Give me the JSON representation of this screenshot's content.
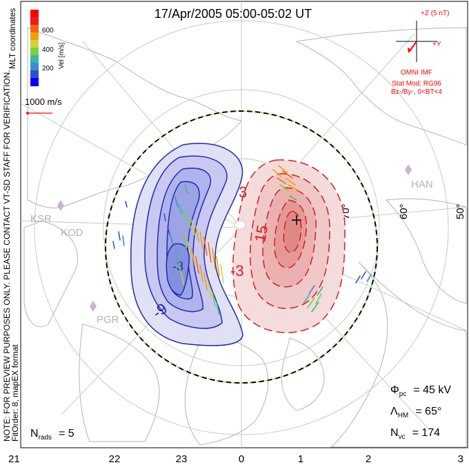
{
  "title": "17/Apr/2005 05:00-05:02 UT",
  "side_note": {
    "line1": "NOTE: FOR PREVIEW PURPOSES ONLY. PLEASE CONTACT VT-SD STAFF FOR VERIFICATION.",
    "line2": "FitOrder: 8, mapEX format"
  },
  "colorbar": {
    "title": "Vel [m/s]",
    "coord_label": "MLT coordinates",
    "ticks": [
      "600",
      "400",
      "200"
    ],
    "colors": [
      "#0000ff",
      "#3050c8",
      "#3c8cd2",
      "#3cb4a0",
      "#78d23c",
      "#d2d23c",
      "#f0a000",
      "#f06414",
      "#e61e1e",
      "#ff0000"
    ]
  },
  "vector_scale": {
    "label": "1000 m/s",
    "color": "#ff0000"
  },
  "imf": {
    "bz_label": "+Z (5 nT)",
    "by_label": "+Y",
    "source": "OMNI IMF",
    "stat_mod": "Stat Mod: RG96",
    "condition": "Bz-/By-, 0<BT<4",
    "color": "#ff0000"
  },
  "stations": [
    {
      "code": "HAN"
    },
    {
      "code": "KSR"
    },
    {
      "code": "KOD"
    },
    {
      "code": "PGR"
    }
  ],
  "latitude_labels": [
    "70°",
    "60°",
    "50°"
  ],
  "contours": {
    "negative_labels": [
      "-9",
      "-3"
    ],
    "positive_labels": [
      "3",
      "15",
      "-3"
    ],
    "negative_color": "#1e28b4",
    "positive_color": "#d21e1e"
  },
  "stats": {
    "phi_symbol": "Φ",
    "phi_sub": "pc",
    "phi_value": "= 45 kV",
    "lambda_symbol": "Λ",
    "lambda_sub": "HM",
    "lambda_value": "= 65°",
    "nvc_symbol": "N",
    "nvc_sub": "vc",
    "nvc_value": "= 174"
  },
  "nrads": {
    "symbol": "N",
    "sub": "rads",
    "value": "= 5"
  },
  "mlt_axis": [
    "21",
    "22",
    "23",
    "0",
    "1",
    "2",
    "3"
  ]
}
